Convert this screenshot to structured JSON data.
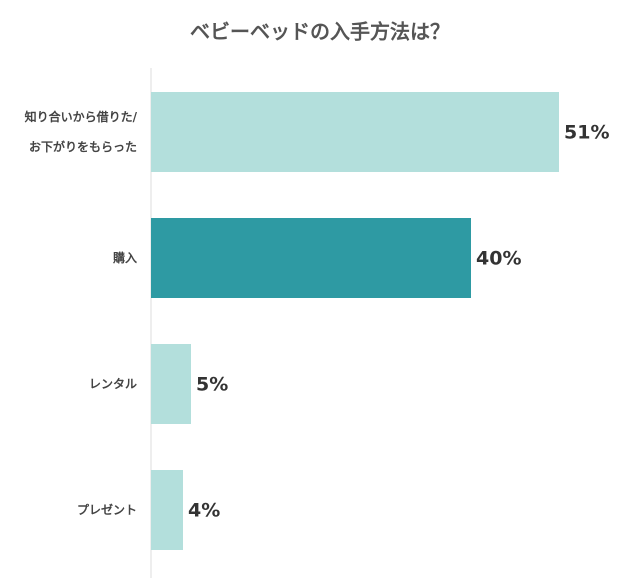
{
  "chart_data": {
    "type": "hbar",
    "title": "ベビーベッドの入手方法は？",
    "categories": [
      "知り合いから借りた/\nお下がりをもらった",
      "購入",
      "レンタル",
      "プレゼント"
    ],
    "values": [
      51,
      40,
      5,
      4
    ],
    "value_labels": [
      "51%",
      "40%",
      "5%",
      "4%"
    ],
    "colors": [
      "#b3dfdc",
      "#2e9aa3",
      "#b3dfdc",
      "#b3dfdc"
    ]
  }
}
